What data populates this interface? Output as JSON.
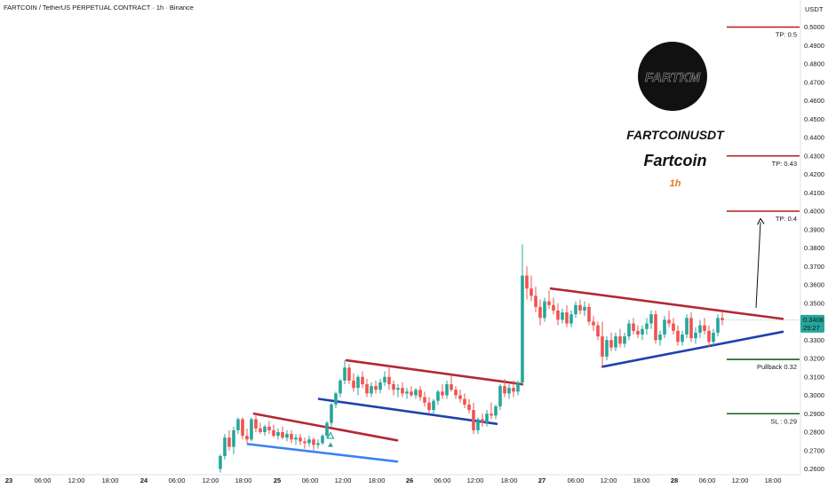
{
  "header": {
    "title": "FARTCOIN / TetherUS PERPETUAL CONTRACT · 1h · Binance",
    "currency": "USDT"
  },
  "overlay": {
    "logo_text": "FARTKM",
    "symbol": "FARTCOINUSDT",
    "name": "Fartcoin",
    "timeframe": "1h"
  },
  "colors": {
    "up": "#26a69a",
    "down": "#ef5350",
    "resistance": "#b22833",
    "support": "#1e40af",
    "support_light": "#3b82f6",
    "tp_line": "#b71c1c",
    "green_line": "#1b5e20",
    "price_badge": "#26a69a"
  },
  "last_price": {
    "value": "0.3408",
    "countdown": "29:27"
  },
  "levels": [
    {
      "label": "TP: 0.5",
      "price": 0.5,
      "kind": "tp"
    },
    {
      "label": "TP: 0.43",
      "price": 0.43,
      "kind": "tp"
    },
    {
      "label": "TP: 0.4",
      "price": 0.4,
      "kind": "tp"
    },
    {
      "label": "Pullback 0.32",
      "price": 0.3195,
      "kind": "green"
    },
    {
      "label": "SL : 0.29",
      "price": 0.29,
      "kind": "green"
    }
  ],
  "chart_data": {
    "type": "candlestick",
    "title": "FARTCOIN / TetherUS PERPETUAL CONTRACT · 1h · Binance",
    "ylabel": "USDT",
    "ylim": [
      0.255,
      0.505
    ],
    "y_ticks": [
      "0.5000",
      "0.4900",
      "0.4800",
      "0.4700",
      "0.4600",
      "0.4500",
      "0.4400",
      "0.4300",
      "0.4200",
      "0.4100",
      "0.4000",
      "0.3900",
      "0.3800",
      "0.3700",
      "0.3600",
      "0.3500",
      "0.3400",
      "0.3300",
      "0.3200",
      "0.3100",
      "0.3000",
      "0.2900",
      "0.2800",
      "0.2700",
      "0.2600"
    ],
    "x_ticks": [
      "23",
      "06:00",
      "12:00",
      "18:00",
      "24",
      "06:00",
      "12:00",
      "18:00",
      "25",
      "06:00",
      "12:00",
      "18:00",
      "26",
      "06:00",
      "12:00",
      "18:00",
      "27",
      "06:00",
      "12:00",
      "18:00",
      "28",
      "06:00",
      "12:00",
      "18:00"
    ],
    "x_tick_positions": [
      10,
      48,
      86,
      124,
      162,
      199,
      237,
      274,
      312,
      349,
      386,
      424,
      461,
      498,
      535,
      573,
      610,
      648,
      685,
      722,
      759,
      796,
      833,
      870
    ],
    "candles": [
      {
        "x": 248,
        "o": 0.26,
        "h": 0.268,
        "l": 0.258,
        "c": 0.267
      },
      {
        "x": 253,
        "o": 0.267,
        "h": 0.279,
        "l": 0.265,
        "c": 0.277
      },
      {
        "x": 258,
        "o": 0.277,
        "h": 0.281,
        "l": 0.27,
        "c": 0.272
      },
      {
        "x": 263,
        "o": 0.272,
        "h": 0.283,
        "l": 0.268,
        "c": 0.281
      },
      {
        "x": 268,
        "o": 0.281,
        "h": 0.288,
        "l": 0.279,
        "c": 0.287
      },
      {
        "x": 273,
        "o": 0.287,
        "h": 0.288,
        "l": 0.276,
        "c": 0.278
      },
      {
        "x": 278,
        "o": 0.278,
        "h": 0.282,
        "l": 0.274,
        "c": 0.276
      },
      {
        "x": 283,
        "o": 0.276,
        "h": 0.288,
        "l": 0.275,
        "c": 0.287
      },
      {
        "x": 288,
        "o": 0.287,
        "h": 0.29,
        "l": 0.28,
        "c": 0.282
      },
      {
        "x": 293,
        "o": 0.282,
        "h": 0.285,
        "l": 0.279,
        "c": 0.28
      },
      {
        "x": 298,
        "o": 0.28,
        "h": 0.284,
        "l": 0.278,
        "c": 0.283
      },
      {
        "x": 303,
        "o": 0.283,
        "h": 0.286,
        "l": 0.279,
        "c": 0.281
      },
      {
        "x": 308,
        "o": 0.281,
        "h": 0.284,
        "l": 0.277,
        "c": 0.278
      },
      {
        "x": 313,
        "o": 0.278,
        "h": 0.282,
        "l": 0.276,
        "c": 0.28
      },
      {
        "x": 318,
        "o": 0.28,
        "h": 0.283,
        "l": 0.276,
        "c": 0.277
      },
      {
        "x": 323,
        "o": 0.277,
        "h": 0.281,
        "l": 0.275,
        "c": 0.279
      },
      {
        "x": 328,
        "o": 0.279,
        "h": 0.281,
        "l": 0.274,
        "c": 0.276
      },
      {
        "x": 333,
        "o": 0.276,
        "h": 0.279,
        "l": 0.273,
        "c": 0.277
      },
      {
        "x": 338,
        "o": 0.277,
        "h": 0.279,
        "l": 0.273,
        "c": 0.275
      },
      {
        "x": 343,
        "o": 0.275,
        "h": 0.277,
        "l": 0.271,
        "c": 0.274
      },
      {
        "x": 348,
        "o": 0.274,
        "h": 0.278,
        "l": 0.272,
        "c": 0.276
      },
      {
        "x": 353,
        "o": 0.276,
        "h": 0.277,
        "l": 0.27,
        "c": 0.273
      },
      {
        "x": 358,
        "o": 0.273,
        "h": 0.276,
        "l": 0.271,
        "c": 0.274
      },
      {
        "x": 363,
        "o": 0.274,
        "h": 0.279,
        "l": 0.273,
        "c": 0.278
      },
      {
        "x": 368,
        "o": 0.278,
        "h": 0.286,
        "l": 0.277,
        "c": 0.285
      },
      {
        "x": 373,
        "o": 0.285,
        "h": 0.296,
        "l": 0.283,
        "c": 0.295
      },
      {
        "x": 378,
        "o": 0.295,
        "h": 0.302,
        "l": 0.293,
        "c": 0.301
      },
      {
        "x": 383,
        "o": 0.301,
        "h": 0.309,
        "l": 0.299,
        "c": 0.308
      },
      {
        "x": 388,
        "o": 0.308,
        "h": 0.319,
        "l": 0.306,
        "c": 0.315
      },
      {
        "x": 393,
        "o": 0.315,
        "h": 0.317,
        "l": 0.306,
        "c": 0.308
      },
      {
        "x": 398,
        "o": 0.308,
        "h": 0.312,
        "l": 0.302,
        "c": 0.304
      },
      {
        "x": 403,
        "o": 0.304,
        "h": 0.311,
        "l": 0.3,
        "c": 0.31
      },
      {
        "x": 408,
        "o": 0.31,
        "h": 0.313,
        "l": 0.304,
        "c": 0.306
      },
      {
        "x": 413,
        "o": 0.306,
        "h": 0.309,
        "l": 0.299,
        "c": 0.301
      },
      {
        "x": 418,
        "o": 0.301,
        "h": 0.307,
        "l": 0.299,
        "c": 0.305
      },
      {
        "x": 423,
        "o": 0.305,
        "h": 0.308,
        "l": 0.301,
        "c": 0.303
      },
      {
        "x": 428,
        "o": 0.303,
        "h": 0.309,
        "l": 0.301,
        "c": 0.307
      },
      {
        "x": 433,
        "o": 0.307,
        "h": 0.313,
        "l": 0.305,
        "c": 0.31
      },
      {
        "x": 438,
        "o": 0.31,
        "h": 0.316,
        "l": 0.303,
        "c": 0.306
      },
      {
        "x": 443,
        "o": 0.306,
        "h": 0.308,
        "l": 0.3,
        "c": 0.303
      },
      {
        "x": 448,
        "o": 0.303,
        "h": 0.306,
        "l": 0.299,
        "c": 0.304
      },
      {
        "x": 453,
        "o": 0.304,
        "h": 0.307,
        "l": 0.299,
        "c": 0.301
      },
      {
        "x": 458,
        "o": 0.301,
        "h": 0.304,
        "l": 0.298,
        "c": 0.302
      },
      {
        "x": 463,
        "o": 0.302,
        "h": 0.305,
        "l": 0.299,
        "c": 0.3
      },
      {
        "x": 468,
        "o": 0.3,
        "h": 0.304,
        "l": 0.298,
        "c": 0.303
      },
      {
        "x": 473,
        "o": 0.303,
        "h": 0.305,
        "l": 0.297,
        "c": 0.299
      },
      {
        "x": 478,
        "o": 0.299,
        "h": 0.302,
        "l": 0.294,
        "c": 0.296
      },
      {
        "x": 483,
        "o": 0.296,
        "h": 0.299,
        "l": 0.29,
        "c": 0.292
      },
      {
        "x": 488,
        "o": 0.292,
        "h": 0.298,
        "l": 0.29,
        "c": 0.297
      },
      {
        "x": 493,
        "o": 0.297,
        "h": 0.303,
        "l": 0.295,
        "c": 0.302
      },
      {
        "x": 498,
        "o": 0.302,
        "h": 0.306,
        "l": 0.298,
        "c": 0.3
      },
      {
        "x": 503,
        "o": 0.3,
        "h": 0.308,
        "l": 0.298,
        "c": 0.306
      },
      {
        "x": 508,
        "o": 0.306,
        "h": 0.311,
        "l": 0.302,
        "c": 0.303
      },
      {
        "x": 513,
        "o": 0.303,
        "h": 0.305,
        "l": 0.298,
        "c": 0.3
      },
      {
        "x": 518,
        "o": 0.3,
        "h": 0.303,
        "l": 0.296,
        "c": 0.298
      },
      {
        "x": 523,
        "o": 0.298,
        "h": 0.301,
        "l": 0.293,
        "c": 0.295
      },
      {
        "x": 528,
        "o": 0.295,
        "h": 0.298,
        "l": 0.29,
        "c": 0.292
      },
      {
        "x": 533,
        "o": 0.292,
        "h": 0.296,
        "l": 0.279,
        "c": 0.281
      },
      {
        "x": 538,
        "o": 0.281,
        "h": 0.288,
        "l": 0.279,
        "c": 0.287
      },
      {
        "x": 543,
        "o": 0.287,
        "h": 0.29,
        "l": 0.283,
        "c": 0.285
      },
      {
        "x": 548,
        "o": 0.285,
        "h": 0.292,
        "l": 0.283,
        "c": 0.29
      },
      {
        "x": 553,
        "o": 0.29,
        "h": 0.296,
        "l": 0.287,
        "c": 0.289
      },
      {
        "x": 558,
        "o": 0.289,
        "h": 0.295,
        "l": 0.287,
        "c": 0.294
      },
      {
        "x": 563,
        "o": 0.294,
        "h": 0.306,
        "l": 0.292,
        "c": 0.305
      },
      {
        "x": 568,
        "o": 0.305,
        "h": 0.309,
        "l": 0.299,
        "c": 0.301
      },
      {
        "x": 573,
        "o": 0.301,
        "h": 0.306,
        "l": 0.298,
        "c": 0.304
      },
      {
        "x": 578,
        "o": 0.304,
        "h": 0.308,
        "l": 0.299,
        "c": 0.302
      },
      {
        "x": 583,
        "o": 0.302,
        "h": 0.308,
        "l": 0.3,
        "c": 0.307
      },
      {
        "x": 588,
        "o": 0.307,
        "h": 0.382,
        "l": 0.305,
        "c": 0.365
      },
      {
        "x": 593,
        "o": 0.365,
        "h": 0.37,
        "l": 0.352,
        "c": 0.358
      },
      {
        "x": 598,
        "o": 0.358,
        "h": 0.365,
        "l": 0.351,
        "c": 0.354
      },
      {
        "x": 603,
        "o": 0.354,
        "h": 0.359,
        "l": 0.345,
        "c": 0.348
      },
      {
        "x": 608,
        "o": 0.348,
        "h": 0.352,
        "l": 0.338,
        "c": 0.342
      },
      {
        "x": 613,
        "o": 0.342,
        "h": 0.353,
        "l": 0.34,
        "c": 0.351
      },
      {
        "x": 618,
        "o": 0.351,
        "h": 0.357,
        "l": 0.347,
        "c": 0.349
      },
      {
        "x": 623,
        "o": 0.349,
        "h": 0.353,
        "l": 0.344,
        "c": 0.346
      },
      {
        "x": 628,
        "o": 0.346,
        "h": 0.35,
        "l": 0.338,
        "c": 0.341
      },
      {
        "x": 633,
        "o": 0.341,
        "h": 0.347,
        "l": 0.339,
        "c": 0.345
      },
      {
        "x": 638,
        "o": 0.345,
        "h": 0.349,
        "l": 0.337,
        "c": 0.339
      },
      {
        "x": 643,
        "o": 0.339,
        "h": 0.346,
        "l": 0.337,
        "c": 0.344
      },
      {
        "x": 648,
        "o": 0.344,
        "h": 0.351,
        "l": 0.342,
        "c": 0.349
      },
      {
        "x": 653,
        "o": 0.349,
        "h": 0.352,
        "l": 0.344,
        "c": 0.346
      },
      {
        "x": 658,
        "o": 0.346,
        "h": 0.351,
        "l": 0.343,
        "c": 0.348
      },
      {
        "x": 663,
        "o": 0.348,
        "h": 0.35,
        "l": 0.338,
        "c": 0.34
      },
      {
        "x": 668,
        "o": 0.34,
        "h": 0.343,
        "l": 0.335,
        "c": 0.338
      },
      {
        "x": 673,
        "o": 0.338,
        "h": 0.34,
        "l": 0.33,
        "c": 0.332
      },
      {
        "x": 678,
        "o": 0.332,
        "h": 0.34,
        "l": 0.315,
        "c": 0.321
      },
      {
        "x": 683,
        "o": 0.321,
        "h": 0.332,
        "l": 0.319,
        "c": 0.33
      },
      {
        "x": 688,
        "o": 0.33,
        "h": 0.334,
        "l": 0.324,
        "c": 0.326
      },
      {
        "x": 693,
        "o": 0.326,
        "h": 0.334,
        "l": 0.324,
        "c": 0.332
      },
      {
        "x": 698,
        "o": 0.332,
        "h": 0.336,
        "l": 0.326,
        "c": 0.328
      },
      {
        "x": 703,
        "o": 0.328,
        "h": 0.334,
        "l": 0.326,
        "c": 0.332
      },
      {
        "x": 708,
        "o": 0.332,
        "h": 0.341,
        "l": 0.33,
        "c": 0.339
      },
      {
        "x": 713,
        "o": 0.339,
        "h": 0.342,
        "l": 0.333,
        "c": 0.335
      },
      {
        "x": 718,
        "o": 0.335,
        "h": 0.338,
        "l": 0.331,
        "c": 0.333
      },
      {
        "x": 723,
        "o": 0.333,
        "h": 0.338,
        "l": 0.33,
        "c": 0.336
      },
      {
        "x": 728,
        "o": 0.336,
        "h": 0.342,
        "l": 0.333,
        "c": 0.339
      },
      {
        "x": 733,
        "o": 0.339,
        "h": 0.346,
        "l": 0.336,
        "c": 0.344
      },
      {
        "x": 738,
        "o": 0.344,
        "h": 0.346,
        "l": 0.328,
        "c": 0.33
      },
      {
        "x": 743,
        "o": 0.33,
        "h": 0.335,
        "l": 0.327,
        "c": 0.333
      },
      {
        "x": 748,
        "o": 0.333,
        "h": 0.343,
        "l": 0.331,
        "c": 0.341
      },
      {
        "x": 753,
        "o": 0.341,
        "h": 0.346,
        "l": 0.337,
        "c": 0.339
      },
      {
        "x": 758,
        "o": 0.339,
        "h": 0.342,
        "l": 0.333,
        "c": 0.335
      },
      {
        "x": 763,
        "o": 0.335,
        "h": 0.338,
        "l": 0.327,
        "c": 0.329
      },
      {
        "x": 768,
        "o": 0.329,
        "h": 0.335,
        "l": 0.327,
        "c": 0.333
      },
      {
        "x": 773,
        "o": 0.333,
        "h": 0.344,
        "l": 0.331,
        "c": 0.342
      },
      {
        "x": 778,
        "o": 0.342,
        "h": 0.345,
        "l": 0.329,
        "c": 0.331
      },
      {
        "x": 783,
        "o": 0.331,
        "h": 0.337,
        "l": 0.328,
        "c": 0.334
      },
      {
        "x": 788,
        "o": 0.334,
        "h": 0.341,
        "l": 0.331,
        "c": 0.338
      },
      {
        "x": 793,
        "o": 0.338,
        "h": 0.342,
        "l": 0.333,
        "c": 0.335
      },
      {
        "x": 798,
        "o": 0.335,
        "h": 0.338,
        "l": 0.326,
        "c": 0.329
      },
      {
        "x": 803,
        "o": 0.329,
        "h": 0.336,
        "l": 0.327,
        "c": 0.334
      },
      {
        "x": 808,
        "o": 0.334,
        "h": 0.344,
        "l": 0.332,
        "c": 0.342
      },
      {
        "x": 813,
        "o": 0.342,
        "h": 0.345,
        "l": 0.338,
        "c": 0.3408
      }
    ],
    "trendlines": [
      {
        "name": "resistance-1",
        "color": "resistance",
        "p1": {
          "x": 286,
          "y": 0.29
        },
        "p2": {
          "x": 447,
          "y": 0.2755
        }
      },
      {
        "name": "support-1",
        "color": "support_light",
        "p1": {
          "x": 279,
          "y": 0.2735
        },
        "p2": {
          "x": 447,
          "y": 0.264
        }
      },
      {
        "name": "resistance-2",
        "color": "resistance",
        "p1": {
          "x": 390,
          "y": 0.319
        },
        "p2": {
          "x": 588,
          "y": 0.306
        }
      },
      {
        "name": "support-2",
        "color": "support",
        "p1": {
          "x": 359,
          "y": 0.298
        },
        "p2": {
          "x": 559,
          "y": 0.2845
        }
      },
      {
        "name": "resistance-3",
        "color": "resistance",
        "p1": {
          "x": 620,
          "y": 0.358
        },
        "p2": {
          "x": 881,
          "y": 0.3415
        }
      },
      {
        "name": "support-3",
        "color": "support",
        "p1": {
          "x": 678,
          "y": 0.3155
        },
        "p2": {
          "x": 881,
          "y": 0.3345
        }
      }
    ],
    "arrow": {
      "from": {
        "x": 851,
        "y": 0.3475
      },
      "to": {
        "x": 856,
        "y": 0.396
      }
    },
    "triangle_marker": {
      "x": 372,
      "y": 0.2778
    }
  }
}
